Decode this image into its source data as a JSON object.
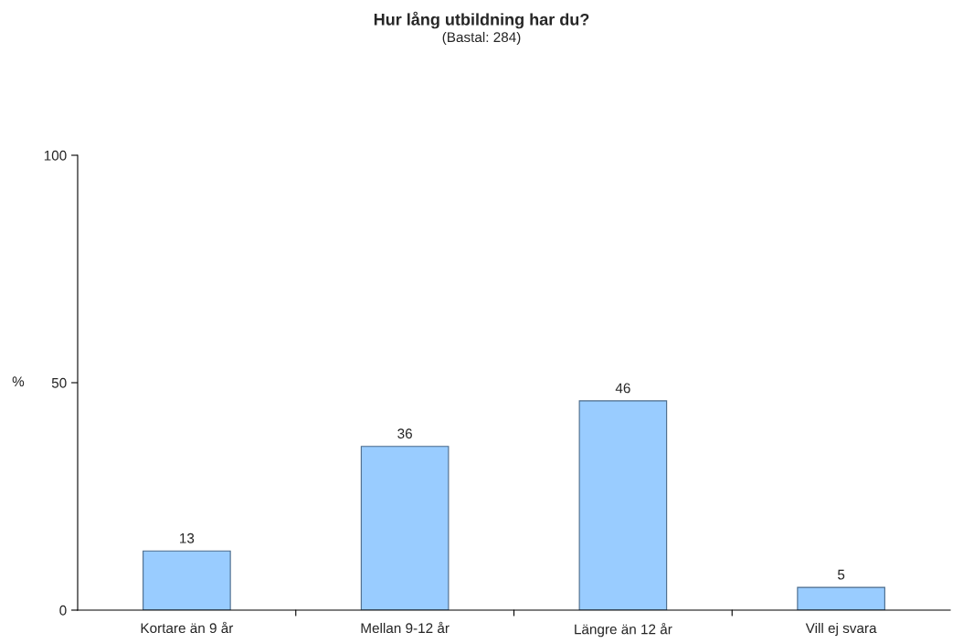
{
  "chart_data": {
    "type": "bar",
    "title": "Hur lång utbildning har du?",
    "subtitle": "(Bastal: 284)",
    "ylabel": "%",
    "categories": [
      "Kortare än 9 år",
      "Mellan 9-12 år",
      "Längre än 12 år",
      "Vill ej svara"
    ],
    "values": [
      13,
      36,
      46,
      5
    ],
    "color": "#99ccff",
    "ylim": [
      0,
      100
    ],
    "yticks": [
      0,
      50,
      100
    ],
    "data_labels": true,
    "grid": false
  }
}
